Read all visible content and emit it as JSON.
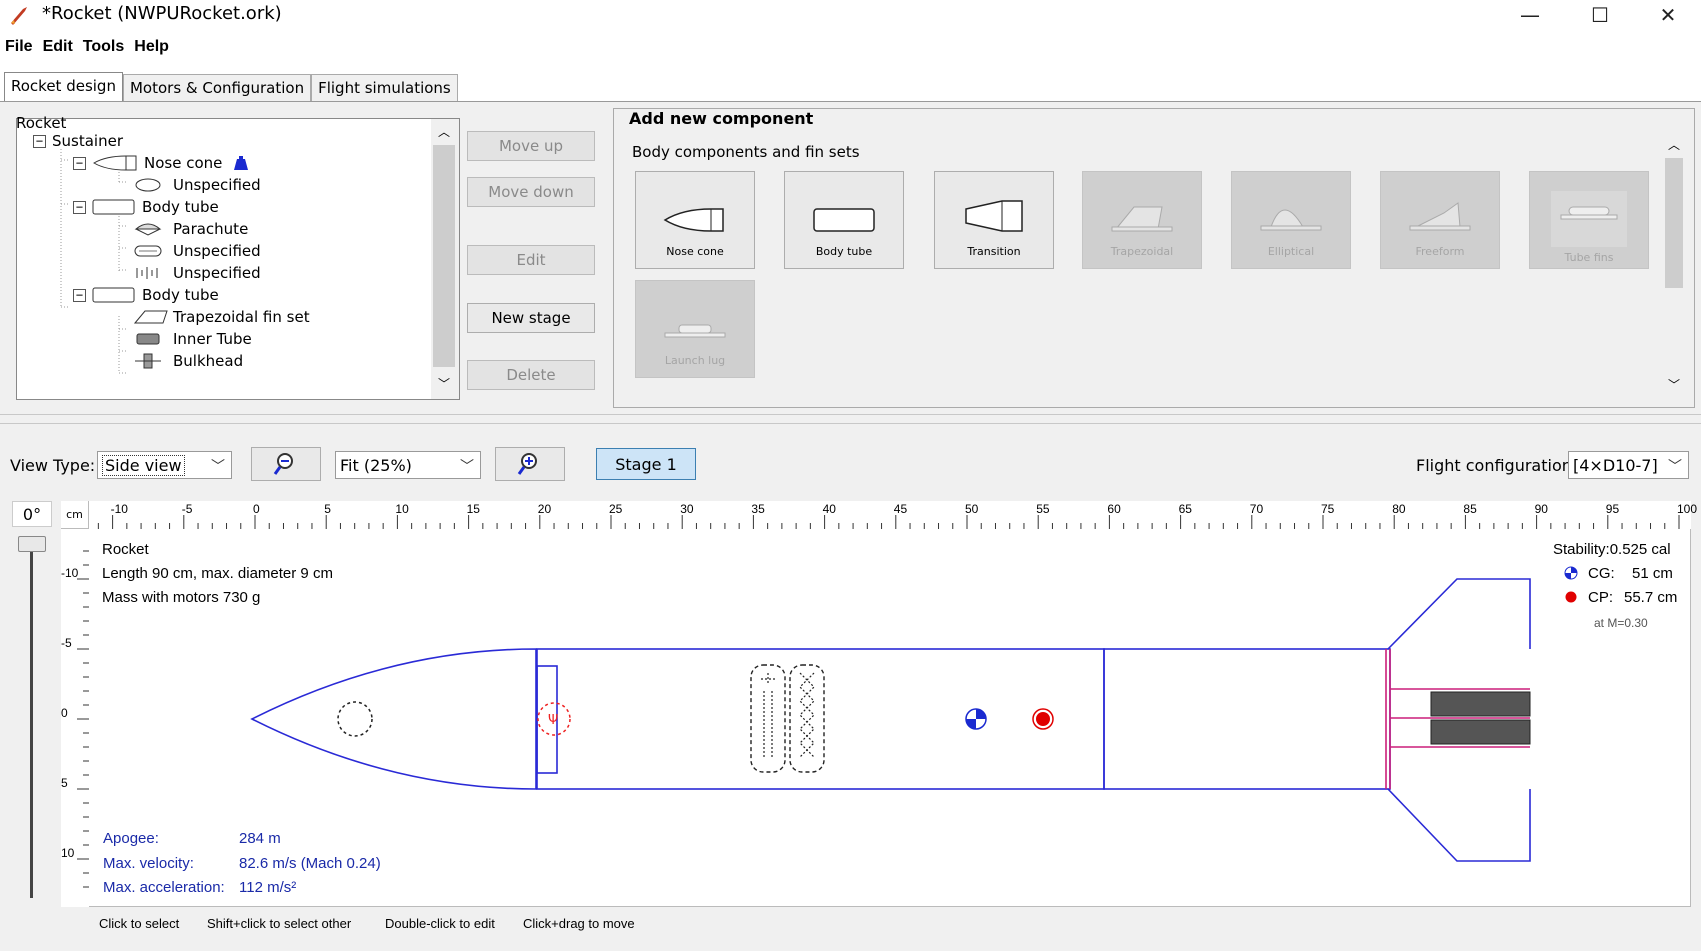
{
  "window": {
    "title": "*Rocket (NWPURocket.ork)",
    "minimize_glyph": "—",
    "maximize_glyph": "☐",
    "close_glyph": "✕"
  },
  "menu": [
    "File",
    "Edit",
    "Tools",
    "Help"
  ],
  "tabs": [
    "Rocket design",
    "Motors & Configuration",
    "Flight simulations"
  ],
  "tree": {
    "root": "Rocket",
    "items": [
      {
        "label": "Sustainer",
        "icon": "stage-icon"
      },
      {
        "label": "Nose cone",
        "icon": "nose-cone-icon"
      },
      {
        "label": "Unspecified",
        "icon": "mass-icon"
      },
      {
        "label": "Body tube",
        "icon": "body-tube-icon"
      },
      {
        "label": "Parachute",
        "icon": "parachute-icon"
      },
      {
        "label": "Unspecified",
        "icon": "shock-cord-icon"
      },
      {
        "label": "Unspecified",
        "icon": "shock-cord-icon"
      },
      {
        "label": "Body tube",
        "icon": "body-tube-icon"
      },
      {
        "label": "Trapezoidal fin set",
        "icon": "trapezoidal-fin-icon"
      },
      {
        "label": "Inner Tube",
        "icon": "inner-tube-icon"
      },
      {
        "label": "Bulkhead",
        "icon": "bulkhead-icon"
      }
    ]
  },
  "buttons": {
    "move_up": "Move up",
    "move_down": "Move down",
    "edit": "Edit",
    "new_stage": "New stage",
    "delete": "Delete"
  },
  "add_component": {
    "title": "Add new component",
    "section": "Body components and fin sets",
    "components": [
      {
        "label": "Nose cone",
        "enabled": true
      },
      {
        "label": "Body tube",
        "enabled": true
      },
      {
        "label": "Transition",
        "enabled": true
      },
      {
        "label": "Trapezoidal",
        "enabled": false
      },
      {
        "label": "Elliptical",
        "enabled": false
      },
      {
        "label": "Freeform",
        "enabled": false
      },
      {
        "label": "Tube fins",
        "enabled": false
      },
      {
        "label": "Launch lug",
        "enabled": false
      }
    ]
  },
  "view": {
    "view_type_label": "View Type:",
    "view_type_value": "Side view",
    "zoom_value": "Fit (25%)",
    "stage_button": "Stage 1",
    "flight_config_label": "Flight configuration:",
    "flight_config_value": "[4×D10-7]",
    "angle": "0°",
    "unit": "cm"
  },
  "ruler": {
    "h_labels": [
      "-10",
      "-5",
      "0",
      "5",
      "10",
      "15",
      "20",
      "25",
      "30",
      "35",
      "40",
      "45",
      "50",
      "55",
      "60",
      "65",
      "70",
      "75",
      "80",
      "85",
      "90",
      "95",
      "100"
    ],
    "v_labels": [
      "-10",
      "-5",
      "0",
      "5",
      "10"
    ]
  },
  "rocket_info": {
    "name": "Rocket",
    "length_line": "Length 90 cm, max. diameter 9 cm",
    "mass_line": "Mass with motors 730 g"
  },
  "stability": {
    "stability_line": "Stability:0.525 cal",
    "cg_label": "CG:",
    "cg_value": "51 cm",
    "cp_label": "CP:",
    "cp_value": "55.7 cm",
    "mach_line": "at M=0.30"
  },
  "flight": {
    "apogee_label": "Apogee:",
    "apogee_value": "284 m",
    "velocity_label": "Max. velocity:",
    "velocity_value": "82.6 m/s  (Mach 0.24)",
    "acceleration_label": "Max. acceleration:",
    "acceleration_value": "112 m/s²"
  },
  "hints": [
    "Click to select",
    "Shift+click to select other",
    "Double-click to edit",
    "Click+drag to move"
  ],
  "colors": {
    "rocket_outline": "#2a2ad6",
    "motor_mount": "#cc1f7a",
    "cp_marker": "#e00000",
    "cg_marker": "#1a2ad0",
    "flight_text": "#1a2aa8"
  }
}
